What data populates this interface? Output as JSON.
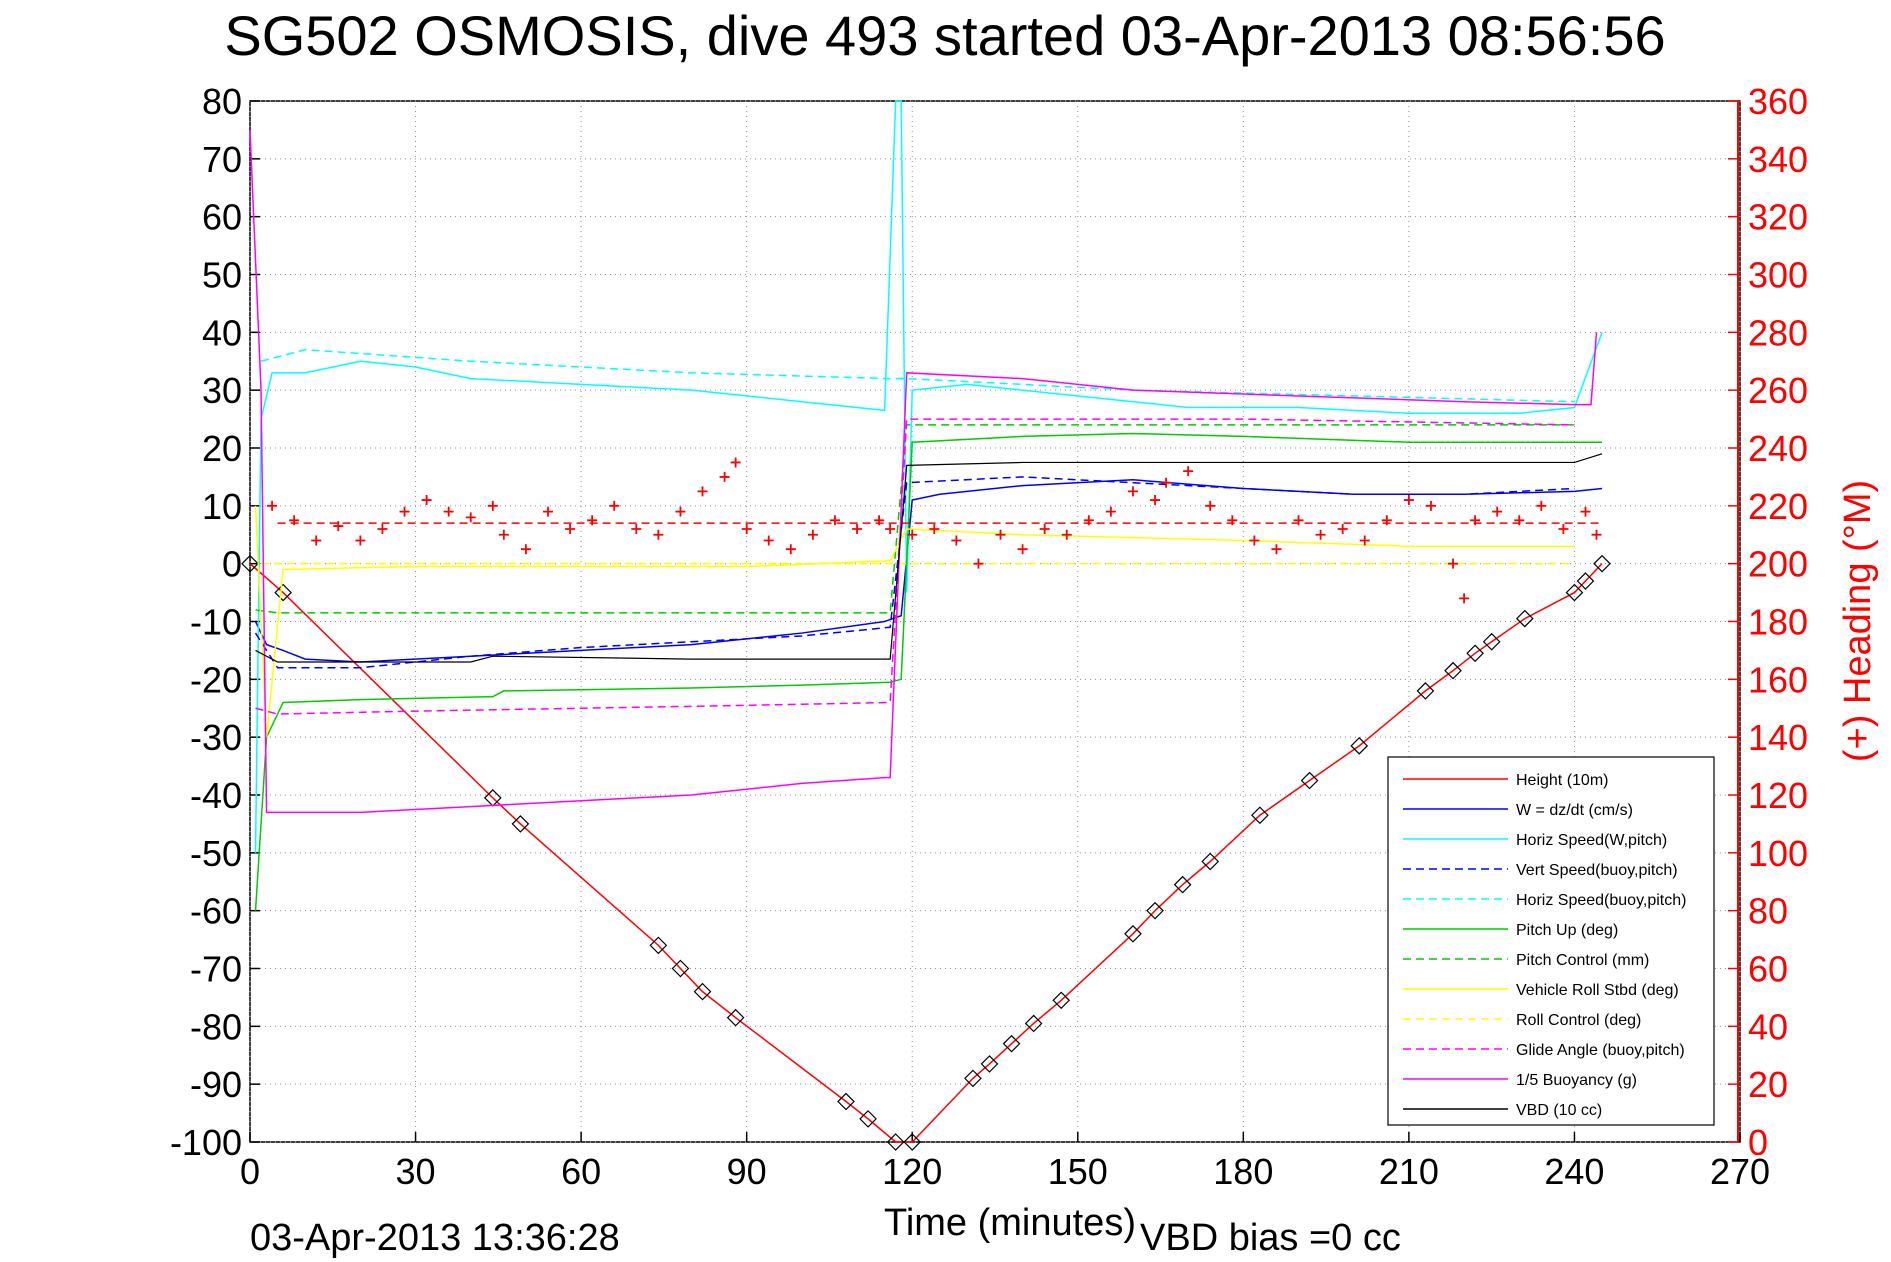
{
  "chart_data": {
    "type": "line",
    "title": "SG502 OSMOSIS, dive 493 started 03-Apr-2013 08:56:56",
    "xlabel": "Time (minutes)",
    "ylabel_right": "(+) Heading (°M)",
    "footer_left": "03-Apr-2013 13:36:28",
    "footer_right": "VBD bias =0 cc",
    "xlim": [
      0,
      270
    ],
    "ylim": [
      -100,
      80
    ],
    "ylim_right": [
      0,
      360
    ],
    "x_ticks": [
      "0",
      "30",
      "60",
      "90",
      "120",
      "150",
      "180",
      "210",
      "240",
      "270"
    ],
    "y_ticks": [
      "80",
      "70",
      "60",
      "50",
      "40",
      "30",
      "20",
      "10",
      "0",
      "-10",
      "-20",
      "-30",
      "-40",
      "-50",
      "-60",
      "-70",
      "-80",
      "-90",
      "-100"
    ],
    "y_ticks_right": [
      "360",
      "340",
      "320",
      "300",
      "280",
      "260",
      "240",
      "220",
      "200",
      "180",
      "160",
      "140",
      "120",
      "100",
      "80",
      "60",
      "40",
      "20",
      "0"
    ],
    "grid": true,
    "legend_position": "bottom-right",
    "series": [
      {
        "name": "Height (10m)",
        "color": "#ff0000",
        "style": "solid",
        "marker": "diamond",
        "points": [
          [
            0,
            0
          ],
          [
            6,
            -5
          ],
          [
            44,
            -40.5
          ],
          [
            49,
            -45
          ],
          [
            74,
            -66
          ],
          [
            78,
            -70
          ],
          [
            82,
            -74
          ],
          [
            88,
            -78.5
          ],
          [
            108,
            -93
          ],
          [
            112,
            -96
          ],
          [
            117,
            -100
          ],
          [
            120,
            -100
          ],
          [
            131,
            -89
          ],
          [
            134,
            -86.5
          ],
          [
            138,
            -83
          ],
          [
            142,
            -79.5
          ],
          [
            147,
            -75.5
          ],
          [
            160,
            -64
          ],
          [
            164,
            -60
          ],
          [
            169,
            -55.5
          ],
          [
            174,
            -51.5
          ],
          [
            183,
            -43.5
          ],
          [
            192,
            -37.5
          ],
          [
            201,
            -31.5
          ],
          [
            213,
            -22
          ],
          [
            218,
            -18.5
          ],
          [
            222,
            -15.5
          ],
          [
            225,
            -13.5
          ],
          [
            231,
            -9.5
          ],
          [
            240,
            -5
          ],
          [
            242,
            -3
          ],
          [
            245,
            0
          ]
        ]
      },
      {
        "name": "W = dz/dt (cm/s)",
        "color": "#0000ff",
        "style": "solid",
        "points": [
          [
            1,
            -10
          ],
          [
            3,
            -14
          ],
          [
            6,
            -15
          ],
          [
            10,
            -16.5
          ],
          [
            20,
            -17
          ],
          [
            40,
            -16
          ],
          [
            60,
            -15
          ],
          [
            80,
            -14
          ],
          [
            100,
            -12
          ],
          [
            115,
            -10
          ],
          [
            118,
            -9
          ],
          [
            120,
            11
          ],
          [
            125,
            12
          ],
          [
            140,
            13.5
          ],
          [
            160,
            14.5
          ],
          [
            180,
            13
          ],
          [
            200,
            12
          ],
          [
            220,
            12
          ],
          [
            240,
            12.5
          ],
          [
            245,
            13
          ]
        ]
      },
      {
        "name": "Horiz Speed(W,pitch)",
        "color": "#00ffff",
        "style": "solid",
        "points": [
          [
            1,
            -50
          ],
          [
            2,
            25
          ],
          [
            4,
            33
          ],
          [
            10,
            33
          ],
          [
            20,
            35
          ],
          [
            30,
            34
          ],
          [
            40,
            32
          ],
          [
            60,
            31
          ],
          [
            80,
            30
          ],
          [
            100,
            28
          ],
          [
            115,
            26.5
          ],
          [
            117,
            80
          ],
          [
            118,
            80
          ],
          [
            119,
            -5
          ],
          [
            120,
            30
          ],
          [
            130,
            31
          ],
          [
            150,
            29
          ],
          [
            170,
            27
          ],
          [
            190,
            27
          ],
          [
            210,
            26
          ],
          [
            230,
            26
          ],
          [
            240,
            27
          ],
          [
            245,
            40
          ]
        ]
      },
      {
        "name": "Vert Speed(buoy,pitch)",
        "color": "#0000ff",
        "style": "dashed",
        "points": [
          [
            1,
            -12
          ],
          [
            5,
            -18
          ],
          [
            20,
            -18
          ],
          [
            40,
            -16
          ],
          [
            60,
            -14.5
          ],
          [
            80,
            -13.5
          ],
          [
            100,
            -12.5
          ],
          [
            116,
            -11
          ],
          [
            119,
            14
          ],
          [
            140,
            15
          ],
          [
            160,
            14
          ],
          [
            180,
            13
          ],
          [
            200,
            12
          ],
          [
            220,
            12
          ],
          [
            240,
            13
          ]
        ]
      },
      {
        "name": "Horiz Speed(buoy,pitch)",
        "color": "#00ffff",
        "style": "dashed",
        "points": [
          [
            2,
            35
          ],
          [
            10,
            37
          ],
          [
            40,
            35
          ],
          [
            80,
            33
          ],
          [
            116,
            32
          ],
          [
            119,
            32
          ],
          [
            140,
            31
          ],
          [
            160,
            30
          ],
          [
            200,
            29
          ],
          [
            240,
            28
          ]
        ]
      },
      {
        "name": "Pitch Up (deg)",
        "color": "#00cc00",
        "style": "solid",
        "points": [
          [
            1,
            -60
          ],
          [
            3,
            -30
          ],
          [
            6,
            -24
          ],
          [
            20,
            -23.5
          ],
          [
            44,
            -23
          ],
          [
            46,
            -22
          ],
          [
            80,
            -21.5
          ],
          [
            100,
            -21
          ],
          [
            116,
            -20.5
          ],
          [
            118,
            -20
          ],
          [
            120,
            21
          ],
          [
            140,
            22
          ],
          [
            160,
            22.5
          ],
          [
            180,
            22
          ],
          [
            210,
            21
          ],
          [
            230,
            21
          ],
          [
            245,
            21
          ]
        ]
      },
      {
        "name": "Pitch Control (mm)",
        "color": "#00cc00",
        "style": "dashed",
        "points": [
          [
            1,
            -8
          ],
          [
            5,
            -8.5
          ],
          [
            50,
            -8.5
          ],
          [
            116,
            -8.5
          ],
          [
            119,
            24
          ],
          [
            140,
            24
          ],
          [
            180,
            24
          ],
          [
            210,
            24
          ],
          [
            240,
            24
          ]
        ]
      },
      {
        "name": "Vehicle Roll Stbd (deg)",
        "color": "#ffff00",
        "style": "solid",
        "points": [
          [
            1,
            10
          ],
          [
            3,
            -30
          ],
          [
            6,
            -1
          ],
          [
            30,
            -0.5
          ],
          [
            60,
            -0.5
          ],
          [
            90,
            -0.5
          ],
          [
            116,
            0.5
          ],
          [
            119,
            6
          ],
          [
            140,
            5
          ],
          [
            180,
            4
          ],
          [
            210,
            3
          ],
          [
            240,
            3
          ]
        ]
      },
      {
        "name": "Roll Control (deg)",
        "color": "#ffff00",
        "style": "dashed",
        "points": [
          [
            2,
            0
          ],
          [
            10,
            0
          ],
          [
            60,
            0
          ],
          [
            116,
            0
          ],
          [
            119,
            0
          ],
          [
            180,
            0
          ],
          [
            240,
            0
          ]
        ]
      },
      {
        "name": "Glide Angle (buoy,pitch)",
        "color": "#ff00ff",
        "style": "dashed",
        "points": [
          [
            1,
            -25
          ],
          [
            5,
            -26
          ],
          [
            30,
            -25.5
          ],
          [
            60,
            -25
          ],
          [
            90,
            -24.5
          ],
          [
            116,
            -24
          ],
          [
            119,
            25
          ],
          [
            150,
            25
          ],
          [
            180,
            25
          ],
          [
            210,
            24.5
          ],
          [
            240,
            24
          ]
        ]
      },
      {
        "name": "1/5 Buoyancy (g)",
        "color": "#ff00ff",
        "style": "solid",
        "points": [
          [
            0,
            75
          ],
          [
            2,
            30
          ],
          [
            3,
            -43
          ],
          [
            20,
            -43
          ],
          [
            40,
            -42
          ],
          [
            60,
            -41
          ],
          [
            80,
            -40
          ],
          [
            100,
            -38
          ],
          [
            115,
            -37
          ],
          [
            116,
            -37
          ],
          [
            119,
            33
          ],
          [
            140,
            32
          ],
          [
            160,
            30
          ],
          [
            190,
            29
          ],
          [
            220,
            28
          ],
          [
            240,
            27.5
          ],
          [
            243,
            27.5
          ],
          [
            244,
            40
          ]
        ]
      },
      {
        "name": "VBD (10 cc)",
        "color": "#000000",
        "style": "solid",
        "points": [
          [
            1,
            -15
          ],
          [
            5,
            -17
          ],
          [
            40,
            -17
          ],
          [
            44,
            -16
          ],
          [
            80,
            -16.5
          ],
          [
            116,
            -16.5
          ],
          [
            119,
            17
          ],
          [
            140,
            17.5
          ],
          [
            180,
            17.5
          ],
          [
            210,
            17.5
          ],
          [
            240,
            17.5
          ],
          [
            245,
            19
          ]
        ]
      }
    ],
    "heading": {
      "color": "#ff0000",
      "marker": "plus",
      "reference_value": 214,
      "points": [
        [
          4,
          220
        ],
        [
          8,
          215
        ],
        [
          12,
          208
        ],
        [
          16,
          213
        ],
        [
          20,
          208
        ],
        [
          24,
          212
        ],
        [
          28,
          218
        ],
        [
          32,
          222
        ],
        [
          36,
          218
        ],
        [
          40,
          216
        ],
        [
          44,
          220
        ],
        [
          46,
          210
        ],
        [
          50,
          205
        ],
        [
          54,
          218
        ],
        [
          58,
          212
        ],
        [
          62,
          215
        ],
        [
          66,
          220
        ],
        [
          70,
          212
        ],
        [
          74,
          210
        ],
        [
          78,
          218
        ],
        [
          82,
          225
        ],
        [
          86,
          230
        ],
        [
          88,
          235
        ],
        [
          90,
          212
        ],
        [
          94,
          208
        ],
        [
          98,
          205
        ],
        [
          102,
          210
        ],
        [
          106,
          215
        ],
        [
          110,
          212
        ],
        [
          114,
          215
        ],
        [
          116,
          212
        ],
        [
          120,
          210
        ],
        [
          124,
          212
        ],
        [
          128,
          208
        ],
        [
          132,
          200
        ],
        [
          136,
          210
        ],
        [
          140,
          205
        ],
        [
          144,
          212
        ],
        [
          148,
          210
        ],
        [
          152,
          215
        ],
        [
          156,
          218
        ],
        [
          160,
          225
        ],
        [
          164,
          222
        ],
        [
          166,
          228
        ],
        [
          170,
          232
        ],
        [
          174,
          220
        ],
        [
          178,
          215
        ],
        [
          182,
          208
        ],
        [
          186,
          205
        ],
        [
          190,
          215
        ],
        [
          194,
          210
        ],
        [
          198,
          212
        ],
        [
          202,
          208
        ],
        [
          206,
          215
        ],
        [
          210,
          222
        ],
        [
          214,
          220
        ],
        [
          218,
          200
        ],
        [
          220,
          188
        ],
        [
          222,
          215
        ],
        [
          226,
          218
        ],
        [
          230,
          215
        ],
        [
          234,
          220
        ],
        [
          238,
          212
        ],
        [
          242,
          218
        ],
        [
          244,
          210
        ]
      ]
    }
  }
}
